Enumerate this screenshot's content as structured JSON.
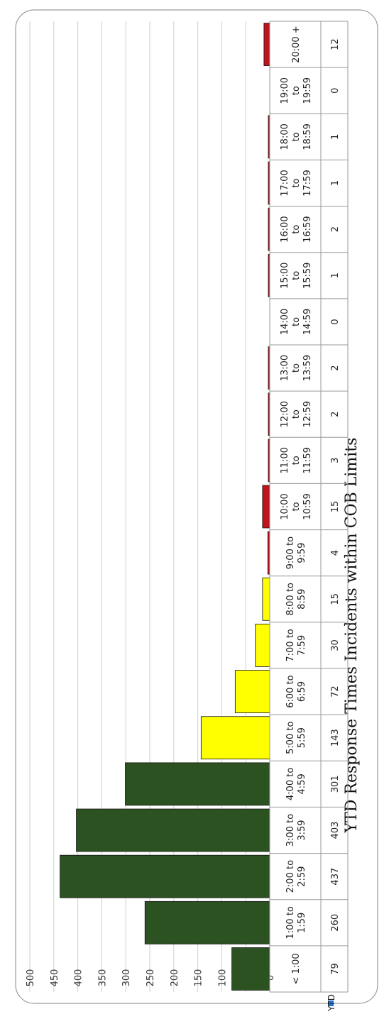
{
  "chart_data": {
    "type": "bar",
    "title": "YTD Response Times Incidents within COB Limits",
    "series_name": "YTD",
    "ylim": [
      0,
      500
    ],
    "yticks": [
      0,
      50,
      100,
      150,
      200,
      250,
      300,
      350,
      400,
      450,
      500
    ],
    "orientation": "rotated-90-clockwise",
    "grid": true,
    "legend": "data-table-row",
    "categories": [
      [
        "< 1:00"
      ],
      [
        "1:00 to",
        "1:59"
      ],
      [
        "2:00 to",
        "2:59"
      ],
      [
        "3:00 to",
        "3:59"
      ],
      [
        "4:00 to",
        "4:59"
      ],
      [
        "5:00 to",
        "5:59"
      ],
      [
        "6:00 to",
        "6:59"
      ],
      [
        "7:00 to",
        "7:59"
      ],
      [
        "8:00 to",
        "8:59"
      ],
      [
        "9:00 to",
        "9:59"
      ],
      [
        "10:00",
        "to",
        "10:59"
      ],
      [
        "11:00",
        "to",
        "11:59"
      ],
      [
        "12:00",
        "to",
        "12:59"
      ],
      [
        "13:00",
        "to",
        "13:59"
      ],
      [
        "14:00",
        "to",
        "14:59"
      ],
      [
        "15:00",
        "to",
        "15:59"
      ],
      [
        "16:00",
        "to",
        "16:59"
      ],
      [
        "17:00",
        "to",
        "17:59"
      ],
      [
        "18:00",
        "to",
        "18:59"
      ],
      [
        "19:00",
        "to",
        "19:59"
      ],
      [
        "20:00 +"
      ]
    ],
    "values": [
      79,
      260,
      437,
      403,
      301,
      143,
      72,
      30,
      15,
      4,
      15,
      3,
      2,
      2,
      0,
      1,
      2,
      1,
      1,
      0,
      12
    ],
    "colors": [
      "#2d5221",
      "#2d5221",
      "#2d5221",
      "#2d5221",
      "#2d5221",
      "#ffff00",
      "#ffff00",
      "#ffff00",
      "#ffff00",
      "#c0141c",
      "#c0141c",
      "#c0141c",
      "#c0141c",
      "#c0141c",
      "#c0141c",
      "#c0141c",
      "#c0141c",
      "#c0141c",
      "#c0141c",
      "#c0141c",
      "#c0141c"
    ],
    "legend_color": "#1f77d4"
  }
}
